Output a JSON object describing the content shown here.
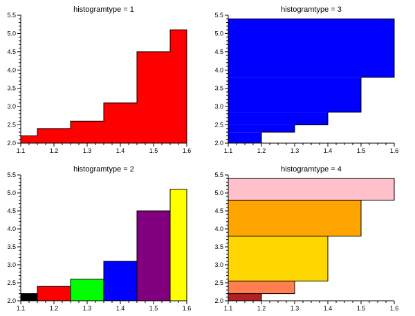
{
  "chart_data": [
    {
      "type": "bar",
      "title": "histogramtype = 1",
      "orientation": "vertical",
      "fill_mode": "single",
      "color": "#ff0000",
      "bins": [
        [
          1.1,
          1.15
        ],
        [
          1.15,
          1.25
        ],
        [
          1.25,
          1.35
        ],
        [
          1.35,
          1.45
        ],
        [
          1.45,
          1.55
        ],
        [
          1.55,
          1.6
        ]
      ],
      "values": [
        2.2,
        2.4,
        2.6,
        3.1,
        4.5,
        5.1
      ],
      "xlim": [
        1.1,
        1.6
      ],
      "ylim": [
        2.0,
        5.5
      ],
      "xticks": [
        "1.1",
        "1.2",
        "1.3",
        "1.4",
        "1.5",
        "1.6"
      ],
      "yticks": [
        "2.0",
        "2.5",
        "3.0",
        "3.5",
        "4.0",
        "4.5",
        "5.0",
        "5.5"
      ]
    },
    {
      "type": "bar",
      "title": "histogramtype = 3",
      "orientation": "horizontal",
      "fill_mode": "single",
      "color": "#0000ff",
      "bins": [
        [
          2.0,
          2.3
        ],
        [
          2.3,
          2.5
        ],
        [
          2.5,
          2.85
        ],
        [
          2.85,
          3.8
        ],
        [
          3.8,
          4.8
        ],
        [
          4.8,
          5.4
        ]
      ],
      "values": [
        1.2,
        1.3,
        1.4,
        1.5,
        1.6,
        1.6
      ],
      "xlim": [
        1.1,
        1.6
      ],
      "ylim": [
        2.0,
        5.5
      ],
      "xticks": [
        "1.1",
        "1.2",
        "1.3",
        "1.4",
        "1.5",
        "1.6"
      ],
      "yticks": [
        "2.0",
        "2.5",
        "3.0",
        "3.5",
        "4.0",
        "4.5",
        "5.0",
        "5.5"
      ]
    },
    {
      "type": "bar",
      "title": "histogramtype = 2",
      "orientation": "vertical",
      "fill_mode": "multi",
      "bins": [
        [
          1.1,
          1.15
        ],
        [
          1.15,
          1.25
        ],
        [
          1.25,
          1.35
        ],
        [
          1.35,
          1.45
        ],
        [
          1.45,
          1.55
        ],
        [
          1.55,
          1.6
        ]
      ],
      "values": [
        2.2,
        2.4,
        2.6,
        3.1,
        4.5,
        5.1
      ],
      "colors": [
        "#000000",
        "#ff0000",
        "#00ff00",
        "#0000ff",
        "#800080",
        "#ffff00"
      ],
      "xlim": [
        1.1,
        1.6
      ],
      "ylim": [
        2.0,
        5.5
      ],
      "xticks": [
        "1.1",
        "1.2",
        "1.3",
        "1.4",
        "1.5",
        "1.6"
      ],
      "yticks": [
        "2.0",
        "2.5",
        "3.0",
        "3.5",
        "4.0",
        "4.5",
        "5.0",
        "5.5"
      ]
    },
    {
      "type": "bar",
      "title": "histogramtype = 4",
      "orientation": "horizontal",
      "fill_mode": "multi",
      "bins": [
        [
          2.0,
          2.2
        ],
        [
          2.2,
          2.55
        ],
        [
          2.55,
          3.8
        ],
        [
          3.8,
          4.8
        ],
        [
          4.8,
          5.4
        ]
      ],
      "values": [
        1.2,
        1.3,
        1.4,
        1.5,
        1.6
      ],
      "colors": [
        "#b22222",
        "#ff7f50",
        "#ffd700",
        "#ffa500",
        "#ffc0cb"
      ],
      "xlim": [
        1.1,
        1.6
      ],
      "ylim": [
        2.0,
        5.5
      ],
      "xticks": [
        "1.1",
        "1.2",
        "1.3",
        "1.4",
        "1.5",
        "1.6"
      ],
      "yticks": [
        "2.0",
        "2.5",
        "3.0",
        "3.5",
        "4.0",
        "4.5",
        "5.0",
        "5.5"
      ]
    }
  ]
}
